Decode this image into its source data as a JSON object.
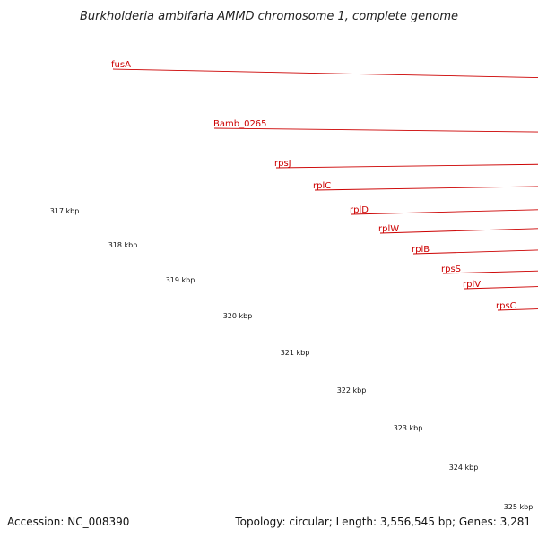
{
  "title": "Burkholderia ambifaria AMMD chromosome 1, complete genome",
  "footer": {
    "accession": "Accession: NC_008390",
    "summary": "Topology: circular; Length: 3,556,545 bp; Genes: 3,281"
  },
  "colors": {
    "feature_band": "#f08080",
    "gene_arrow": "#ff0000",
    "label": "#cc0000",
    "backbone": "#808080",
    "tick": "#1a7a1a",
    "text": "#222222"
  },
  "gene_labels": [
    "fusA",
    "Bamb_0265",
    "rpsJ",
    "rplC",
    "rplD",
    "rplW",
    "rplB",
    "rpsS",
    "rplV",
    "rpsC"
  ],
  "tick_labels": [
    "317 kbp",
    "318 kbp",
    "319 kbp",
    "320 kbp",
    "321 kbp",
    "322 kbp",
    "323 kbp",
    "324 kbp",
    "325 kbp"
  ]
}
